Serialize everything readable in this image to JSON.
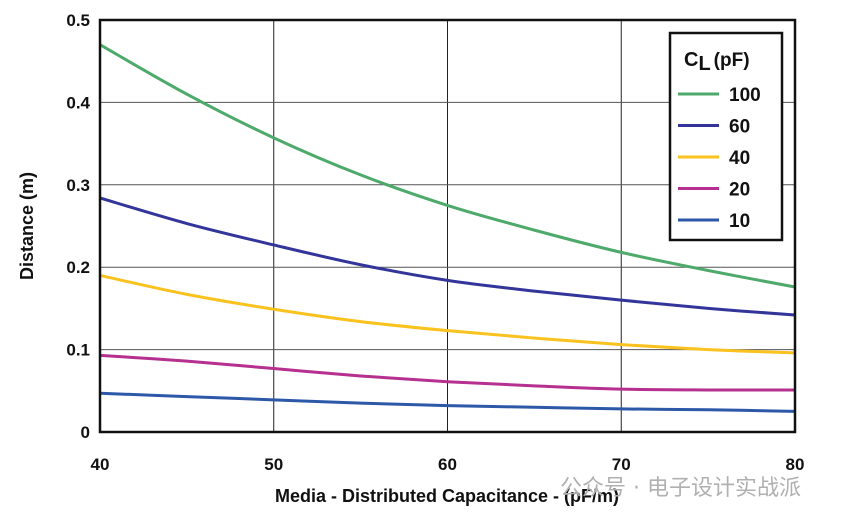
{
  "chart_data": {
    "type": "line",
    "title": "",
    "xlabel": "Media - Distributed Capacitance - (pF/m)",
    "ylabel": "Distance (m)",
    "xlim": [
      40,
      80
    ],
    "ylim": [
      0,
      0.5
    ],
    "x_ticks": [
      "40",
      "50",
      "60",
      "70",
      "80"
    ],
    "y_ticks": [
      "0",
      "0.1",
      "0.2",
      "0.3",
      "0.4",
      "0.5"
    ],
    "grid": true,
    "legend": {
      "title": "CL (pF)",
      "title_main": "C",
      "title_sub": "L",
      "title_rest": "(pF)",
      "placement": "top-right"
    },
    "x": [
      40,
      45,
      50,
      55,
      60,
      65,
      70,
      75,
      80
    ],
    "series": [
      {
        "name": "100",
        "color": "#4daa6a",
        "values": [
          0.47,
          0.41,
          0.357,
          0.312,
          0.275,
          0.245,
          0.218,
          0.196,
          0.176
        ]
      },
      {
        "name": "60",
        "color": "#33359a",
        "values": [
          0.284,
          0.253,
          0.227,
          0.203,
          0.184,
          0.171,
          0.16,
          0.15,
          0.142
        ]
      },
      {
        "name": "40",
        "color": "#f9c21e",
        "values": [
          0.19,
          0.167,
          0.149,
          0.134,
          0.123,
          0.114,
          0.106,
          0.1,
          0.096
        ]
      },
      {
        "name": "20",
        "color": "#b5308f",
        "values": [
          0.093,
          0.086,
          0.077,
          0.068,
          0.061,
          0.056,
          0.052,
          0.051,
          0.051
        ]
      },
      {
        "name": "10",
        "color": "#2d58a8",
        "values": [
          0.047,
          0.043,
          0.039,
          0.035,
          0.032,
          0.03,
          0.028,
          0.027,
          0.025
        ]
      }
    ]
  },
  "watermark": "公众号 · 电子设计实战派"
}
